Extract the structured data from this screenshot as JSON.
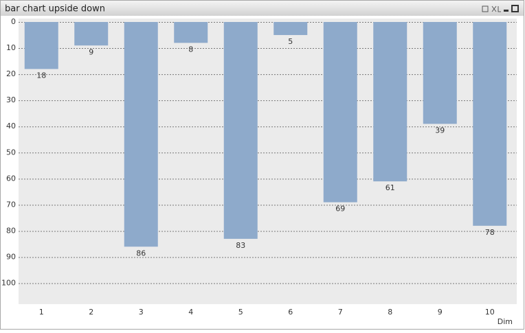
{
  "chart_data": {
    "type": "bar",
    "title": "bar chart upside down",
    "x_label": "Dim",
    "categories": [
      "1",
      "2",
      "3",
      "4",
      "5",
      "6",
      "7",
      "8",
      "9",
      "10"
    ],
    "values": [
      18,
      9,
      86,
      8,
      83,
      5,
      69,
      61,
      39,
      78
    ],
    "color": "#8eaacb",
    "ylim": [
      0,
      108
    ],
    "yticks": [
      0,
      10,
      20,
      30,
      40,
      50,
      60,
      70,
      80,
      90,
      100
    ],
    "y_inverted": true,
    "grid": true,
    "value_labels_shown": true
  }
}
